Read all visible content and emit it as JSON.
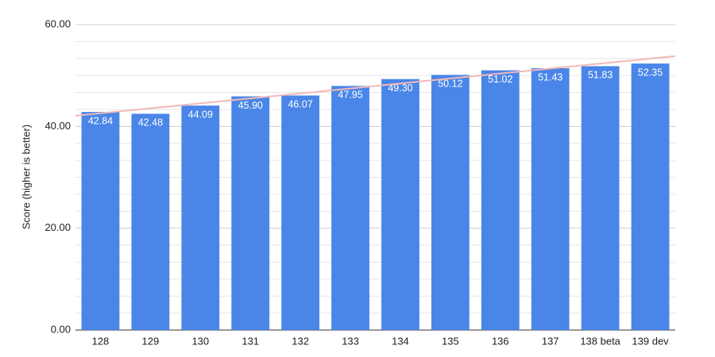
{
  "chart_data": {
    "type": "bar",
    "y_label": "Score (higher is better)",
    "categories": [
      "128",
      "129",
      "130",
      "131",
      "132",
      "133",
      "134",
      "135",
      "136",
      "137",
      "138 beta",
      "139 dev"
    ],
    "values": [
      42.84,
      42.48,
      44.09,
      45.9,
      46.07,
      47.95,
      49.3,
      50.12,
      51.02,
      51.43,
      51.83,
      52.35
    ],
    "value_labels": [
      "42.84",
      "42.48",
      "44.09",
      "45.90",
      "46.07",
      "47.95",
      "49.30",
      "50.12",
      "51.02",
      "51.43",
      "51.83",
      "52.35"
    ],
    "color": "#4a86e8",
    "trendline": true,
    "trendline_color": "#f2b8b8",
    "ylim": [
      0,
      60
    ],
    "yticks": [
      {
        "value": 0,
        "label": "0.00"
      },
      {
        "value": 20,
        "label": "20.00"
      },
      {
        "value": 40,
        "label": "40.00"
      },
      {
        "value": 60,
        "label": "60.00"
      }
    ],
    "grid": true,
    "minor_grid_divisions": 6
  }
}
